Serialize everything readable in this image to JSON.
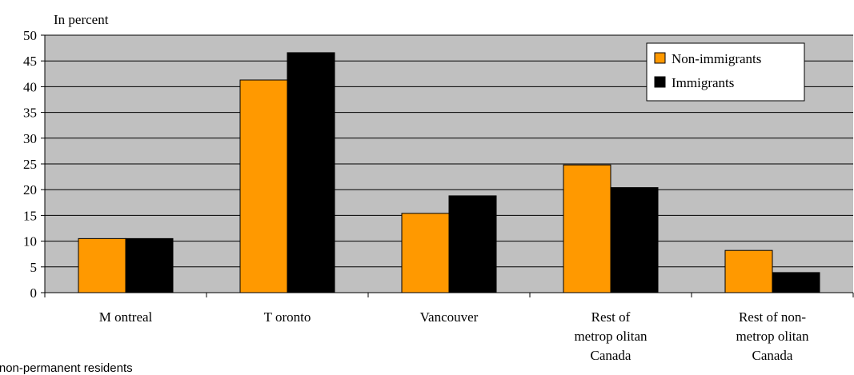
{
  "chart_data": {
    "type": "bar",
    "ylabel": "In percent",
    "xlabel": "",
    "ylim": [
      0,
      50
    ],
    "y_ticks": [
      "0",
      "5",
      "10",
      "15",
      "20",
      "25",
      "30",
      "35",
      "40",
      "45",
      "50"
    ],
    "categories": [
      [
        "M ontreal"
      ],
      [
        "T oronto"
      ],
      [
        "Vancouver"
      ],
      [
        "Rest of",
        "metrop olitan",
        "Canada"
      ],
      [
        "Rest of non-",
        "metrop olitan",
        "Canada"
      ]
    ],
    "series": [
      {
        "name": "Non-immigrants",
        "color": "#FF9900",
        "values": [
          10.5,
          41.3,
          15.4,
          24.8,
          8.2
        ]
      },
      {
        "name": "Immigrants",
        "color": "#000000",
        "values": [
          10.5,
          46.6,
          18.8,
          20.4,
          3.9
        ]
      }
    ],
    "grid": true,
    "plot_background": "#C0C0C0",
    "legend_position": "top-right"
  },
  "footnote": "ng non-permanent residents"
}
